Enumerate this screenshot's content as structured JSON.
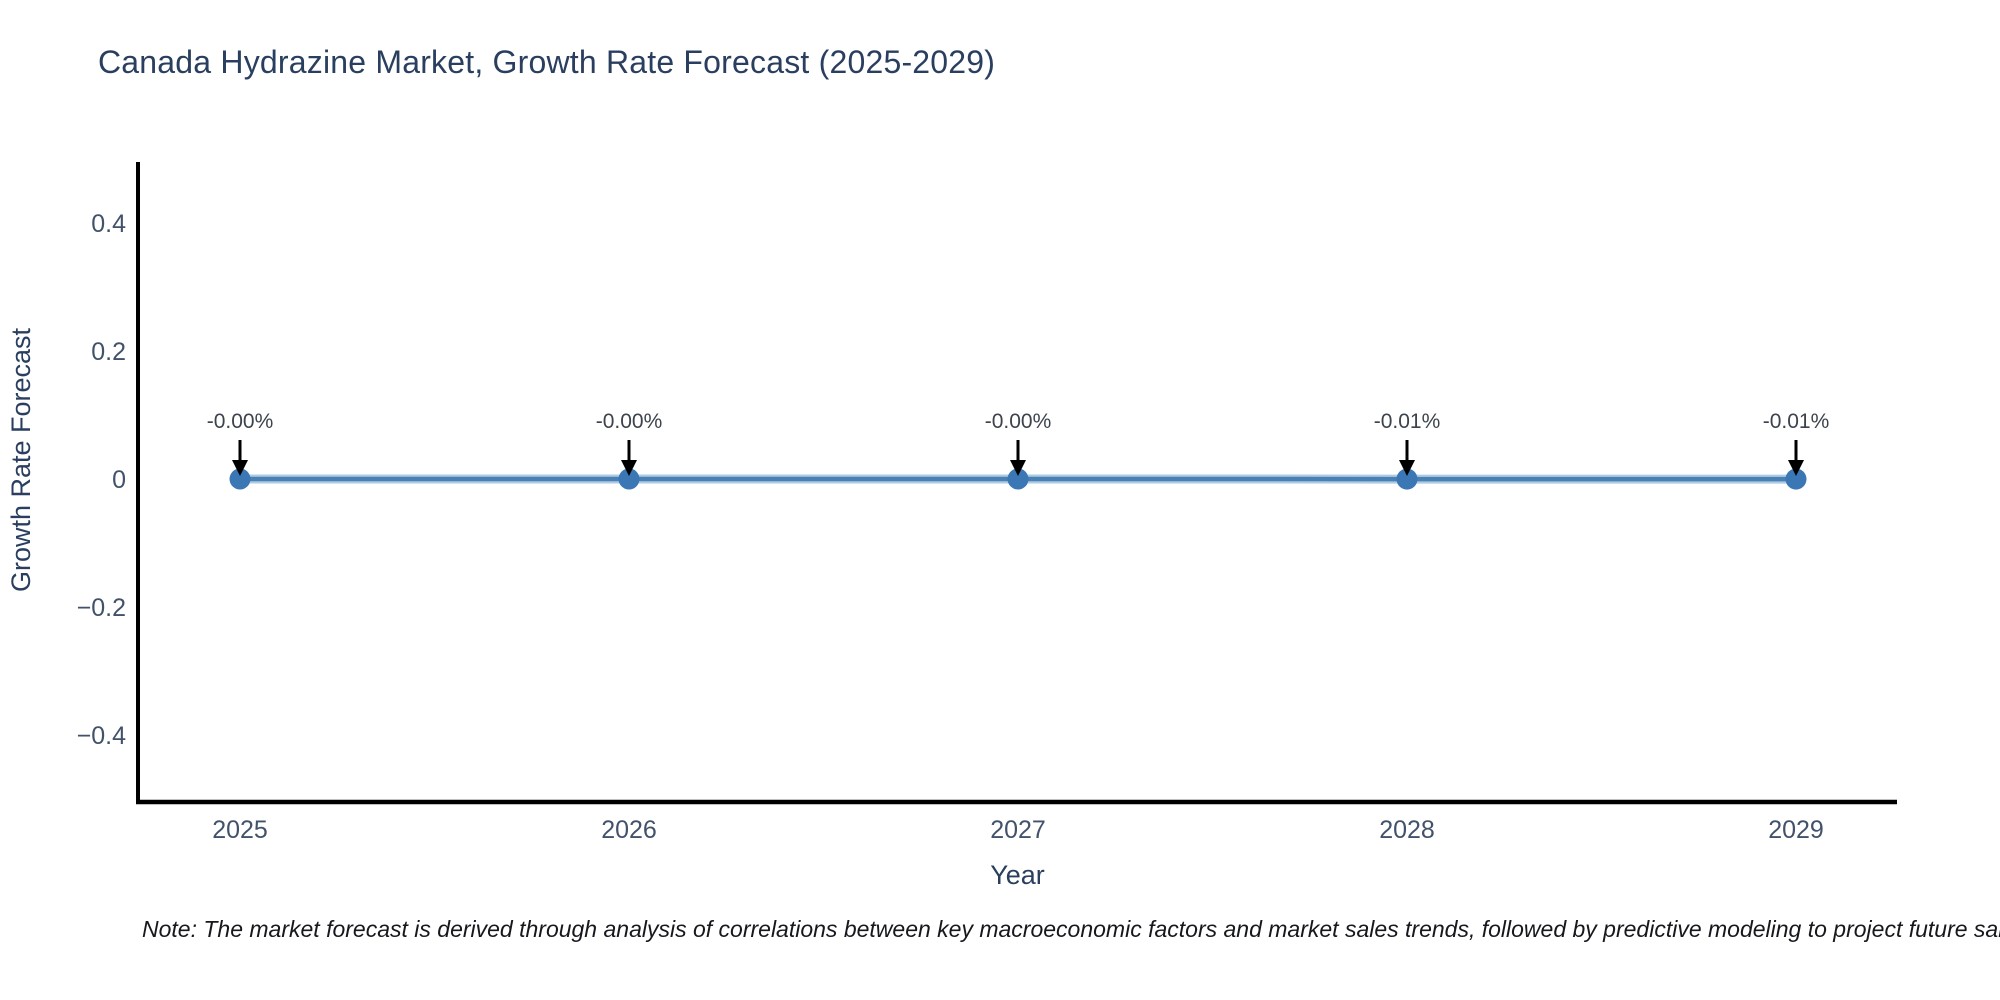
{
  "figure": {
    "title": "Canada Hydrazine Market, Growth Rate Forecast (2025-2029)",
    "note": "Note: The market forecast is derived through analysis of correlations between key macroeconomic factors and market sales trends, followed by predictive modeling to project future sal"
  },
  "chart_data": {
    "type": "line",
    "title": "Canada Hydrazine Market, Growth Rate Forecast (2025-2029)",
    "xlabel": "Year",
    "ylabel": "Growth Rate Forecast",
    "x": [
      2025,
      2026,
      2027,
      2028,
      2029
    ],
    "series": [
      {
        "name": "Growth Rate Forecast",
        "y": [
          -0.0,
          -0.0,
          -0.0,
          -0.0001,
          -0.0001
        ],
        "point_labels": [
          "-0.00%",
          "-0.00%",
          "-0.00%",
          "-0.01%",
          "-0.01%"
        ]
      }
    ],
    "xtick_labels": [
      "2025",
      "2026",
      "2027",
      "2028",
      "2029"
    ],
    "ytick_values": [
      0.4,
      0.2,
      0,
      -0.2,
      -0.4
    ],
    "ytick_labels": [
      "0.4",
      "0.2",
      "0",
      "−0.2",
      "−0.4"
    ],
    "ylim": [
      -0.505,
      0.495
    ],
    "grid": false,
    "legend": "none",
    "annotations_have_arrows": true,
    "colors": {
      "line": "#4a81b4",
      "line_halo": "#aecbe4",
      "marker": "#3b77b4",
      "arrow": "#000000",
      "title_text": "#2a3f5f",
      "axis_title_text": "#2a3f5f",
      "tick_text": "#42526b",
      "annotation_text": "#3d434d",
      "spine": "#000000",
      "background": "#ffffff"
    }
  }
}
